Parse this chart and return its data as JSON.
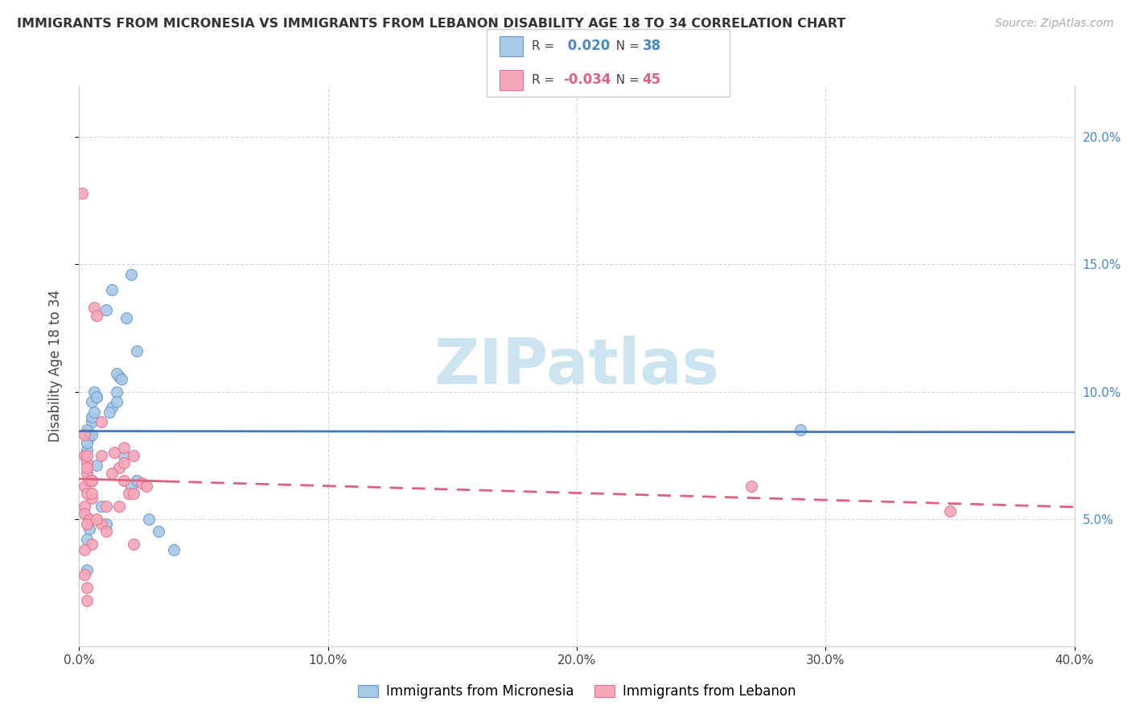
{
  "title": "IMMIGRANTS FROM MICRONESIA VS IMMIGRANTS FROM LEBANON DISABILITY AGE 18 TO 34 CORRELATION CHART",
  "source": "Source: ZipAtlas.com",
  "ylabel": "Disability Age 18 to 34",
  "xlim": [
    0.0,
    0.4
  ],
  "ylim": [
    0.0,
    0.22
  ],
  "yticks": [
    0.05,
    0.1,
    0.15,
    0.2
  ],
  "ytick_labels": [
    "5.0%",
    "10.0%",
    "15.0%",
    "20.0%"
  ],
  "xticks": [
    0.0,
    0.1,
    0.2,
    0.3,
    0.4
  ],
  "xtick_labels": [
    "0.0%",
    "10.0%",
    "20.0%",
    "30.0%",
    "40.0%"
  ],
  "blue_R": 0.02,
  "blue_N": 38,
  "pink_R": -0.034,
  "pink_N": 45,
  "blue_color": "#a8c8e8",
  "pink_color": "#f4a8b8",
  "blue_edge_color": "#6699cc",
  "pink_edge_color": "#e87090",
  "blue_line_color": "#4477bb",
  "pink_line_color": "#e06080",
  "axis_color": "#4488cc",
  "watermark_color": "#cce4f0",
  "blue_scatter_x": [
    0.005,
    0.003,
    0.005,
    0.004,
    0.003,
    0.006,
    0.005,
    0.007,
    0.003,
    0.005,
    0.006,
    0.007,
    0.011,
    0.013,
    0.019,
    0.021,
    0.016,
    0.023,
    0.015,
    0.017,
    0.013,
    0.015,
    0.015,
    0.012,
    0.018,
    0.021,
    0.023,
    0.028,
    0.032,
    0.038,
    0.009,
    0.011,
    0.007,
    0.005,
    0.004,
    0.29,
    0.003,
    0.003
  ],
  "blue_scatter_y": [
    0.088,
    0.085,
    0.09,
    0.082,
    0.077,
    0.092,
    0.096,
    0.098,
    0.08,
    0.083,
    0.1,
    0.098,
    0.132,
    0.14,
    0.129,
    0.146,
    0.106,
    0.116,
    0.107,
    0.105,
    0.094,
    0.1,
    0.096,
    0.092,
    0.075,
    0.063,
    0.065,
    0.05,
    0.045,
    0.038,
    0.055,
    0.048,
    0.071,
    0.065,
    0.046,
    0.085,
    0.042,
    0.03
  ],
  "pink_scatter_x": [
    0.001,
    0.002,
    0.002,
    0.003,
    0.002,
    0.003,
    0.003,
    0.004,
    0.005,
    0.003,
    0.002,
    0.002,
    0.003,
    0.004,
    0.003,
    0.005,
    0.006,
    0.007,
    0.009,
    0.011,
    0.014,
    0.016,
    0.018,
    0.02,
    0.022,
    0.025,
    0.027,
    0.022,
    0.018,
    0.016,
    0.009,
    0.011,
    0.007,
    0.005,
    0.002,
    0.002,
    0.35,
    0.27,
    0.003,
    0.005,
    0.009,
    0.013,
    0.018,
    0.022,
    0.003
  ],
  "pink_scatter_y": [
    0.178,
    0.083,
    0.075,
    0.072,
    0.063,
    0.068,
    0.07,
    0.065,
    0.058,
    0.06,
    0.055,
    0.052,
    0.075,
    0.05,
    0.048,
    0.06,
    0.133,
    0.13,
    0.088,
    0.055,
    0.076,
    0.07,
    0.065,
    0.06,
    0.075,
    0.064,
    0.063,
    0.06,
    0.078,
    0.055,
    0.048,
    0.045,
    0.05,
    0.04,
    0.038,
    0.028,
    0.053,
    0.063,
    0.018,
    0.065,
    0.075,
    0.068,
    0.072,
    0.04,
    0.023
  ]
}
